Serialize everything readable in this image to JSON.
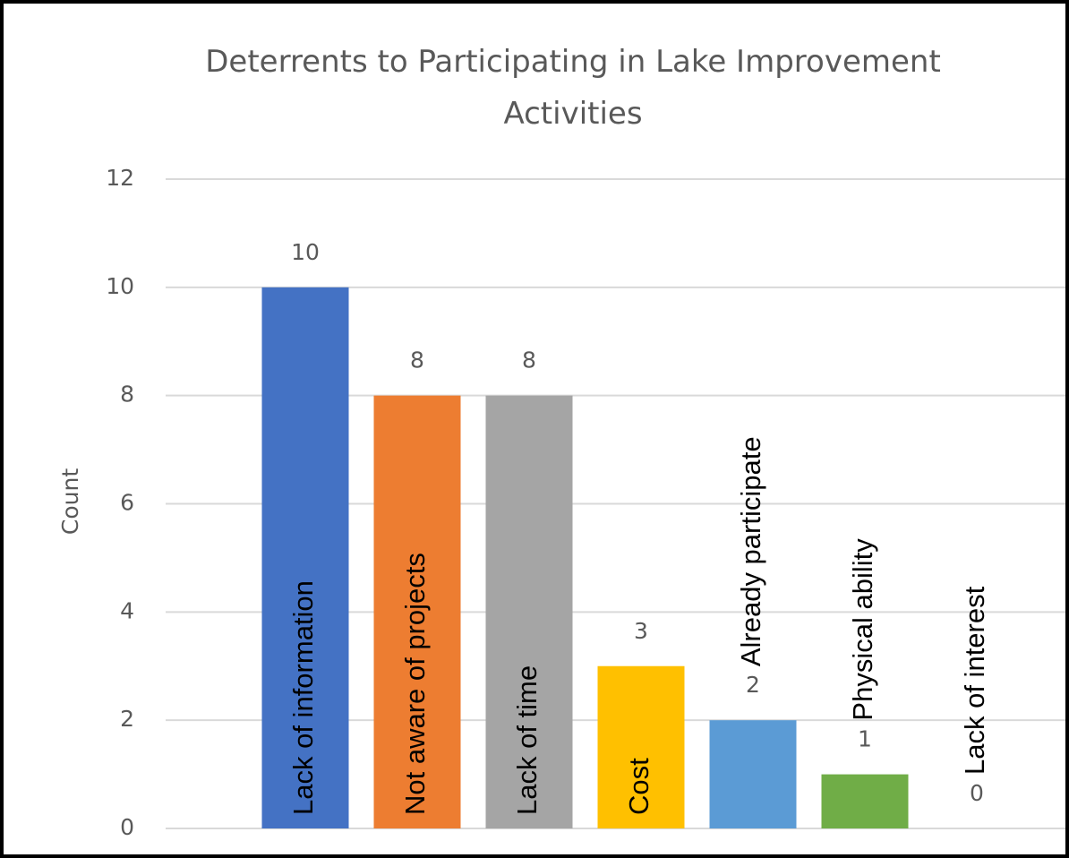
{
  "chart_data": {
    "type": "bar",
    "title": "Deterrents to Participating in Lake Improvement Activities",
    "y_label": "Count",
    "categories": [
      "Lack of information",
      "Not aware of projects",
      "Lack of time",
      "Cost",
      "Already participate",
      "Physical ability",
      "Lack of interest"
    ],
    "values": [
      10,
      8,
      8,
      3,
      2,
      1,
      0
    ],
    "colors": [
      "#4472c4",
      "#ed7d31",
      "#a5a5a5",
      "#ffc000",
      "#5b9bd5",
      "#70ad47",
      "#264478"
    ],
    "ylim": [
      0,
      12
    ],
    "yticks": [
      0,
      2,
      4,
      6,
      8,
      10,
      12
    ],
    "grid": true
  }
}
